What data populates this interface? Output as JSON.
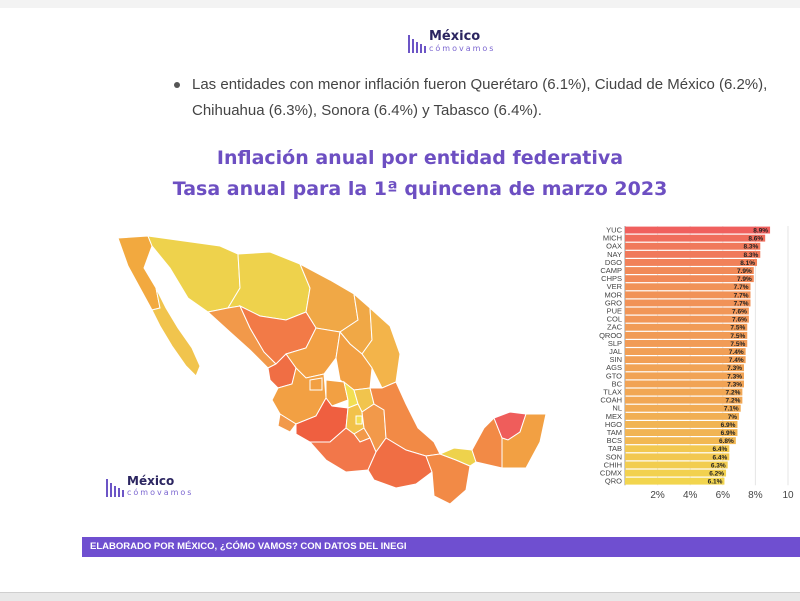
{
  "logo": {
    "word1": "México",
    "word2": "cómovamos"
  },
  "bullet_text": "Las entidades con menor inflación fueron Querétaro (6.1%), Ciudad de México (6.2%), Chihuahua (6.3%), Sonora (6.4%) y Tabasco (6.4%).",
  "title_line1": "Inflación anual por entidad federativa",
  "title_line2": "Tasa anual para la 1ª quincena de marzo 2023",
  "footer": "ELABORADO POR MÉXICO, ¿CÓMO VAMOS? CON DATOS DEL INEGI",
  "colors": {
    "accent": "#6d4fc2",
    "footer_bg": "#6f4fd0",
    "high": "#f0605e",
    "low": "#f2d54e"
  },
  "chart_data": {
    "type": "bar",
    "orientation": "horizontal",
    "categories": [
      "YUC",
      "MICH",
      "OAX",
      "NAY",
      "DGO",
      "CAMP",
      "CHPS",
      "VER",
      "MOR",
      "GRO",
      "PUE",
      "COL",
      "ZAC",
      "QROO",
      "SLP",
      "JAL",
      "SIN",
      "AGS",
      "GTO",
      "BC",
      "TLAX",
      "COAH",
      "NL",
      "MEX",
      "HGO",
      "TAM",
      "BCS",
      "TAB",
      "SON",
      "CHIH",
      "CDMX",
      "QRO"
    ],
    "values": [
      8.9,
      8.6,
      8.3,
      8.3,
      8.1,
      7.9,
      7.9,
      7.7,
      7.7,
      7.7,
      7.6,
      7.6,
      7.5,
      7.5,
      7.5,
      7.4,
      7.4,
      7.3,
      7.3,
      7.3,
      7.2,
      7.2,
      7.1,
      7,
      6.9,
      6.9,
      6.8,
      6.4,
      6.4,
      6.3,
      6.2,
      6.1
    ],
    "data_labels": [
      "8.9%",
      "8.6%",
      "8.3%",
      "8.3%",
      "8.1%",
      "7.9%",
      "7.9%",
      "7.7%",
      "7.7%",
      "7.7%",
      "7.6%",
      "7.6%",
      "7.5%",
      "7.5%",
      "7.5%",
      "7.4%",
      "7.4%",
      "7.3%",
      "7.3%",
      "7.3%",
      "7.2%",
      "7.2%",
      "7.1%",
      "7%",
      "6.9%",
      "6.9%",
      "6.8%",
      "6.4%",
      "6.4%",
      "6.3%",
      "6.2%",
      "6.1%"
    ],
    "x_ticks": [
      "2%",
      "4%",
      "6%",
      "8%",
      "10"
    ],
    "x_tick_values": [
      2,
      4,
      6,
      8,
      10
    ],
    "xlim": [
      0,
      10
    ],
    "grid": true
  },
  "map": {
    "type": "choropleth"
  }
}
